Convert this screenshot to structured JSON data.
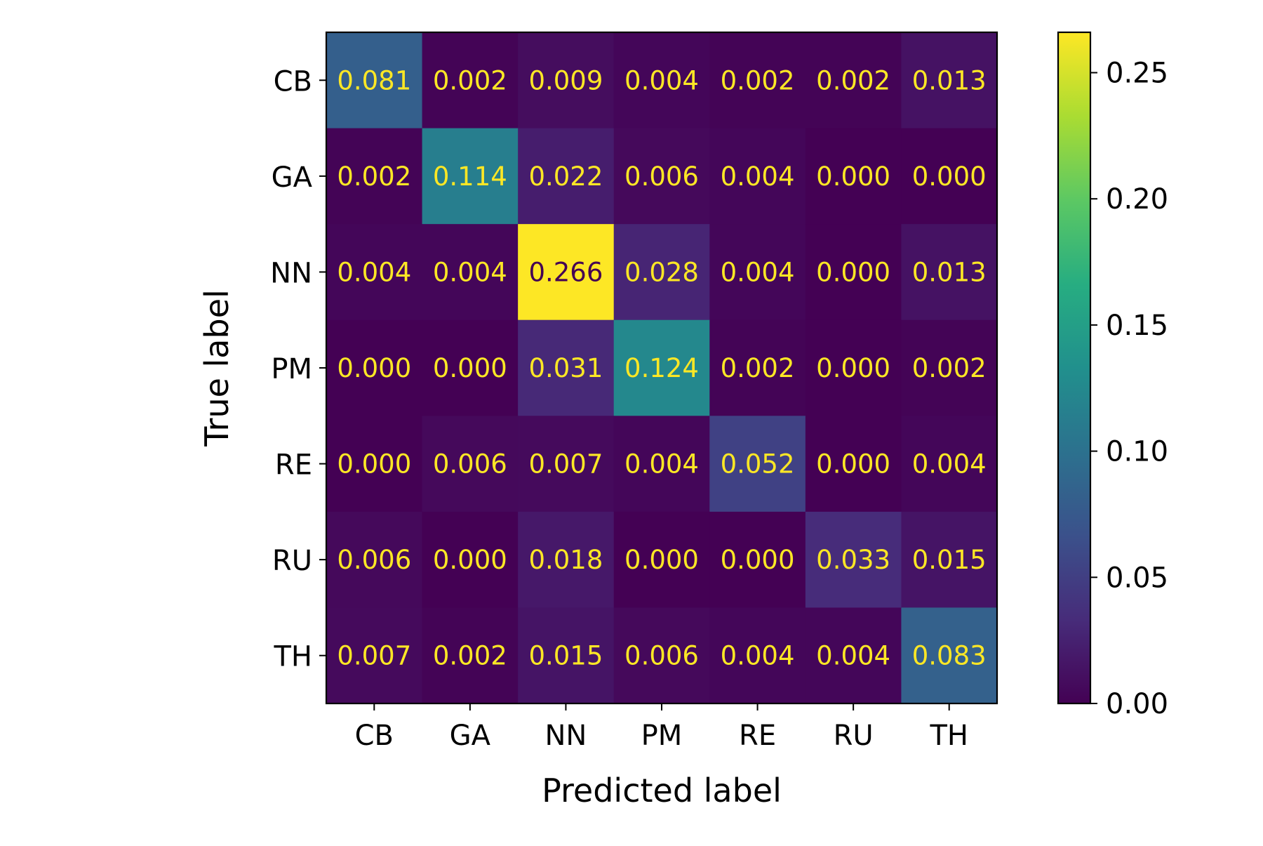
{
  "chart_data": {
    "type": "heatmap",
    "xlabel": "Predicted label",
    "ylabel": "True label",
    "x_categories": [
      "CB",
      "GA",
      "NN",
      "PM",
      "RE",
      "RU",
      "TH"
    ],
    "y_categories": [
      "CB",
      "GA",
      "NN",
      "PM",
      "RE",
      "RU",
      "TH"
    ],
    "values": [
      [
        0.081,
        0.002,
        0.009,
        0.004,
        0.002,
        0.002,
        0.013
      ],
      [
        0.002,
        0.114,
        0.022,
        0.006,
        0.004,
        0.0,
        0.0
      ],
      [
        0.004,
        0.004,
        0.266,
        0.028,
        0.004,
        0.0,
        0.013
      ],
      [
        0.0,
        0.0,
        0.031,
        0.124,
        0.002,
        0.0,
        0.002
      ],
      [
        0.0,
        0.006,
        0.007,
        0.004,
        0.052,
        0.0,
        0.004
      ],
      [
        0.006,
        0.0,
        0.018,
        0.0,
        0.0,
        0.033,
        0.015
      ],
      [
        0.007,
        0.002,
        0.015,
        0.006,
        0.004,
        0.004,
        0.083
      ]
    ],
    "value_labels": [
      [
        "0.081",
        "0.002",
        "0.009",
        "0.004",
        "0.002",
        "0.002",
        "0.013"
      ],
      [
        "0.002",
        "0.114",
        "0.022",
        "0.006",
        "0.004",
        "0.000",
        "0.000"
      ],
      [
        "0.004",
        "0.004",
        "0.266",
        "0.028",
        "0.004",
        "0.000",
        "0.013"
      ],
      [
        "0.000",
        "0.000",
        "0.031",
        "0.124",
        "0.002",
        "0.000",
        "0.002"
      ],
      [
        "0.000",
        "0.006",
        "0.007",
        "0.004",
        "0.052",
        "0.000",
        "0.004"
      ],
      [
        "0.006",
        "0.000",
        "0.018",
        "0.000",
        "0.000",
        "0.033",
        "0.015"
      ],
      [
        "0.007",
        "0.002",
        "0.015",
        "0.006",
        "0.004",
        "0.004",
        "0.083"
      ]
    ],
    "colormap": "viridis",
    "color_range": [
      0,
      0.266
    ],
    "colorbar_ticks": [
      0.0,
      0.05,
      0.1,
      0.15,
      0.2,
      0.25
    ],
    "colorbar_tick_labels": [
      "0.00",
      "0.05",
      "0.10",
      "0.15",
      "0.20",
      "0.25"
    ],
    "text_color_light": "#fde725",
    "text_color_dark": "#440154"
  }
}
